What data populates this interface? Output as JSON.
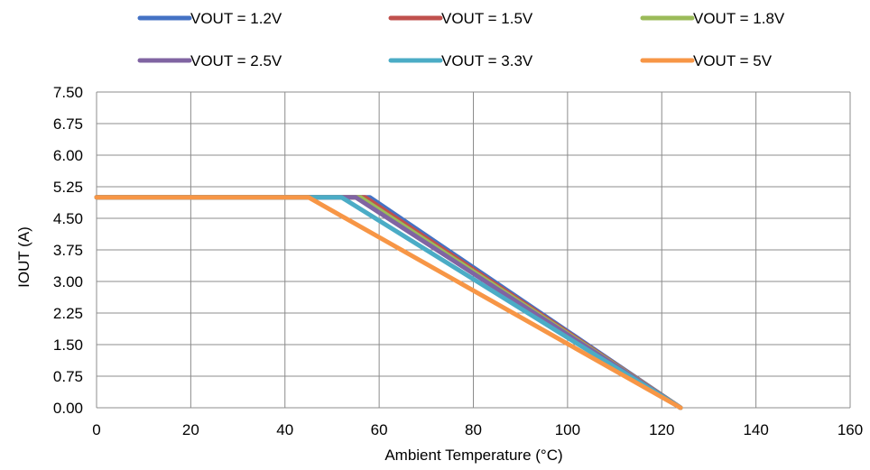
{
  "chart_data": {
    "type": "line",
    "title": "",
    "xlabel": "Ambient Temperature (°C)",
    "ylabel": "IOUT (A)",
    "xlim": [
      0,
      160
    ],
    "ylim": [
      0,
      7.5
    ],
    "x_ticks": [
      "0",
      "20",
      "40",
      "60",
      "80",
      "100",
      "120",
      "140",
      "160"
    ],
    "y_ticks": [
      "0.00",
      "0.75",
      "1.50",
      "2.25",
      "3.00",
      "3.75",
      "4.50",
      "5.25",
      "6.00",
      "6.75",
      "7.50"
    ],
    "grid": true,
    "legend_position": "top",
    "series": [
      {
        "name": "VOUT = 1.2V",
        "color": "#4472C4",
        "x": [
          0,
          58,
          124
        ],
        "y": [
          5,
          5,
          0
        ]
      },
      {
        "name": "VOUT = 1.5V",
        "color": "#C0504D",
        "x": [
          0,
          57,
          124
        ],
        "y": [
          5,
          5,
          0
        ]
      },
      {
        "name": "VOUT = 1.8V",
        "color": "#9BBB59",
        "x": [
          0,
          56,
          124
        ],
        "y": [
          5,
          5,
          0
        ]
      },
      {
        "name": "VOUT = 2.5V",
        "color": "#8064A2",
        "x": [
          0,
          55,
          124
        ],
        "y": [
          5,
          5,
          0
        ]
      },
      {
        "name": "VOUT = 3.3V",
        "color": "#4BACC6",
        "x": [
          0,
          52,
          124
        ],
        "y": [
          5,
          5,
          0
        ]
      },
      {
        "name": "VOUT = 5V",
        "color": "#F79646",
        "x": [
          0,
          45,
          124
        ],
        "y": [
          5,
          5,
          0
        ]
      }
    ]
  }
}
